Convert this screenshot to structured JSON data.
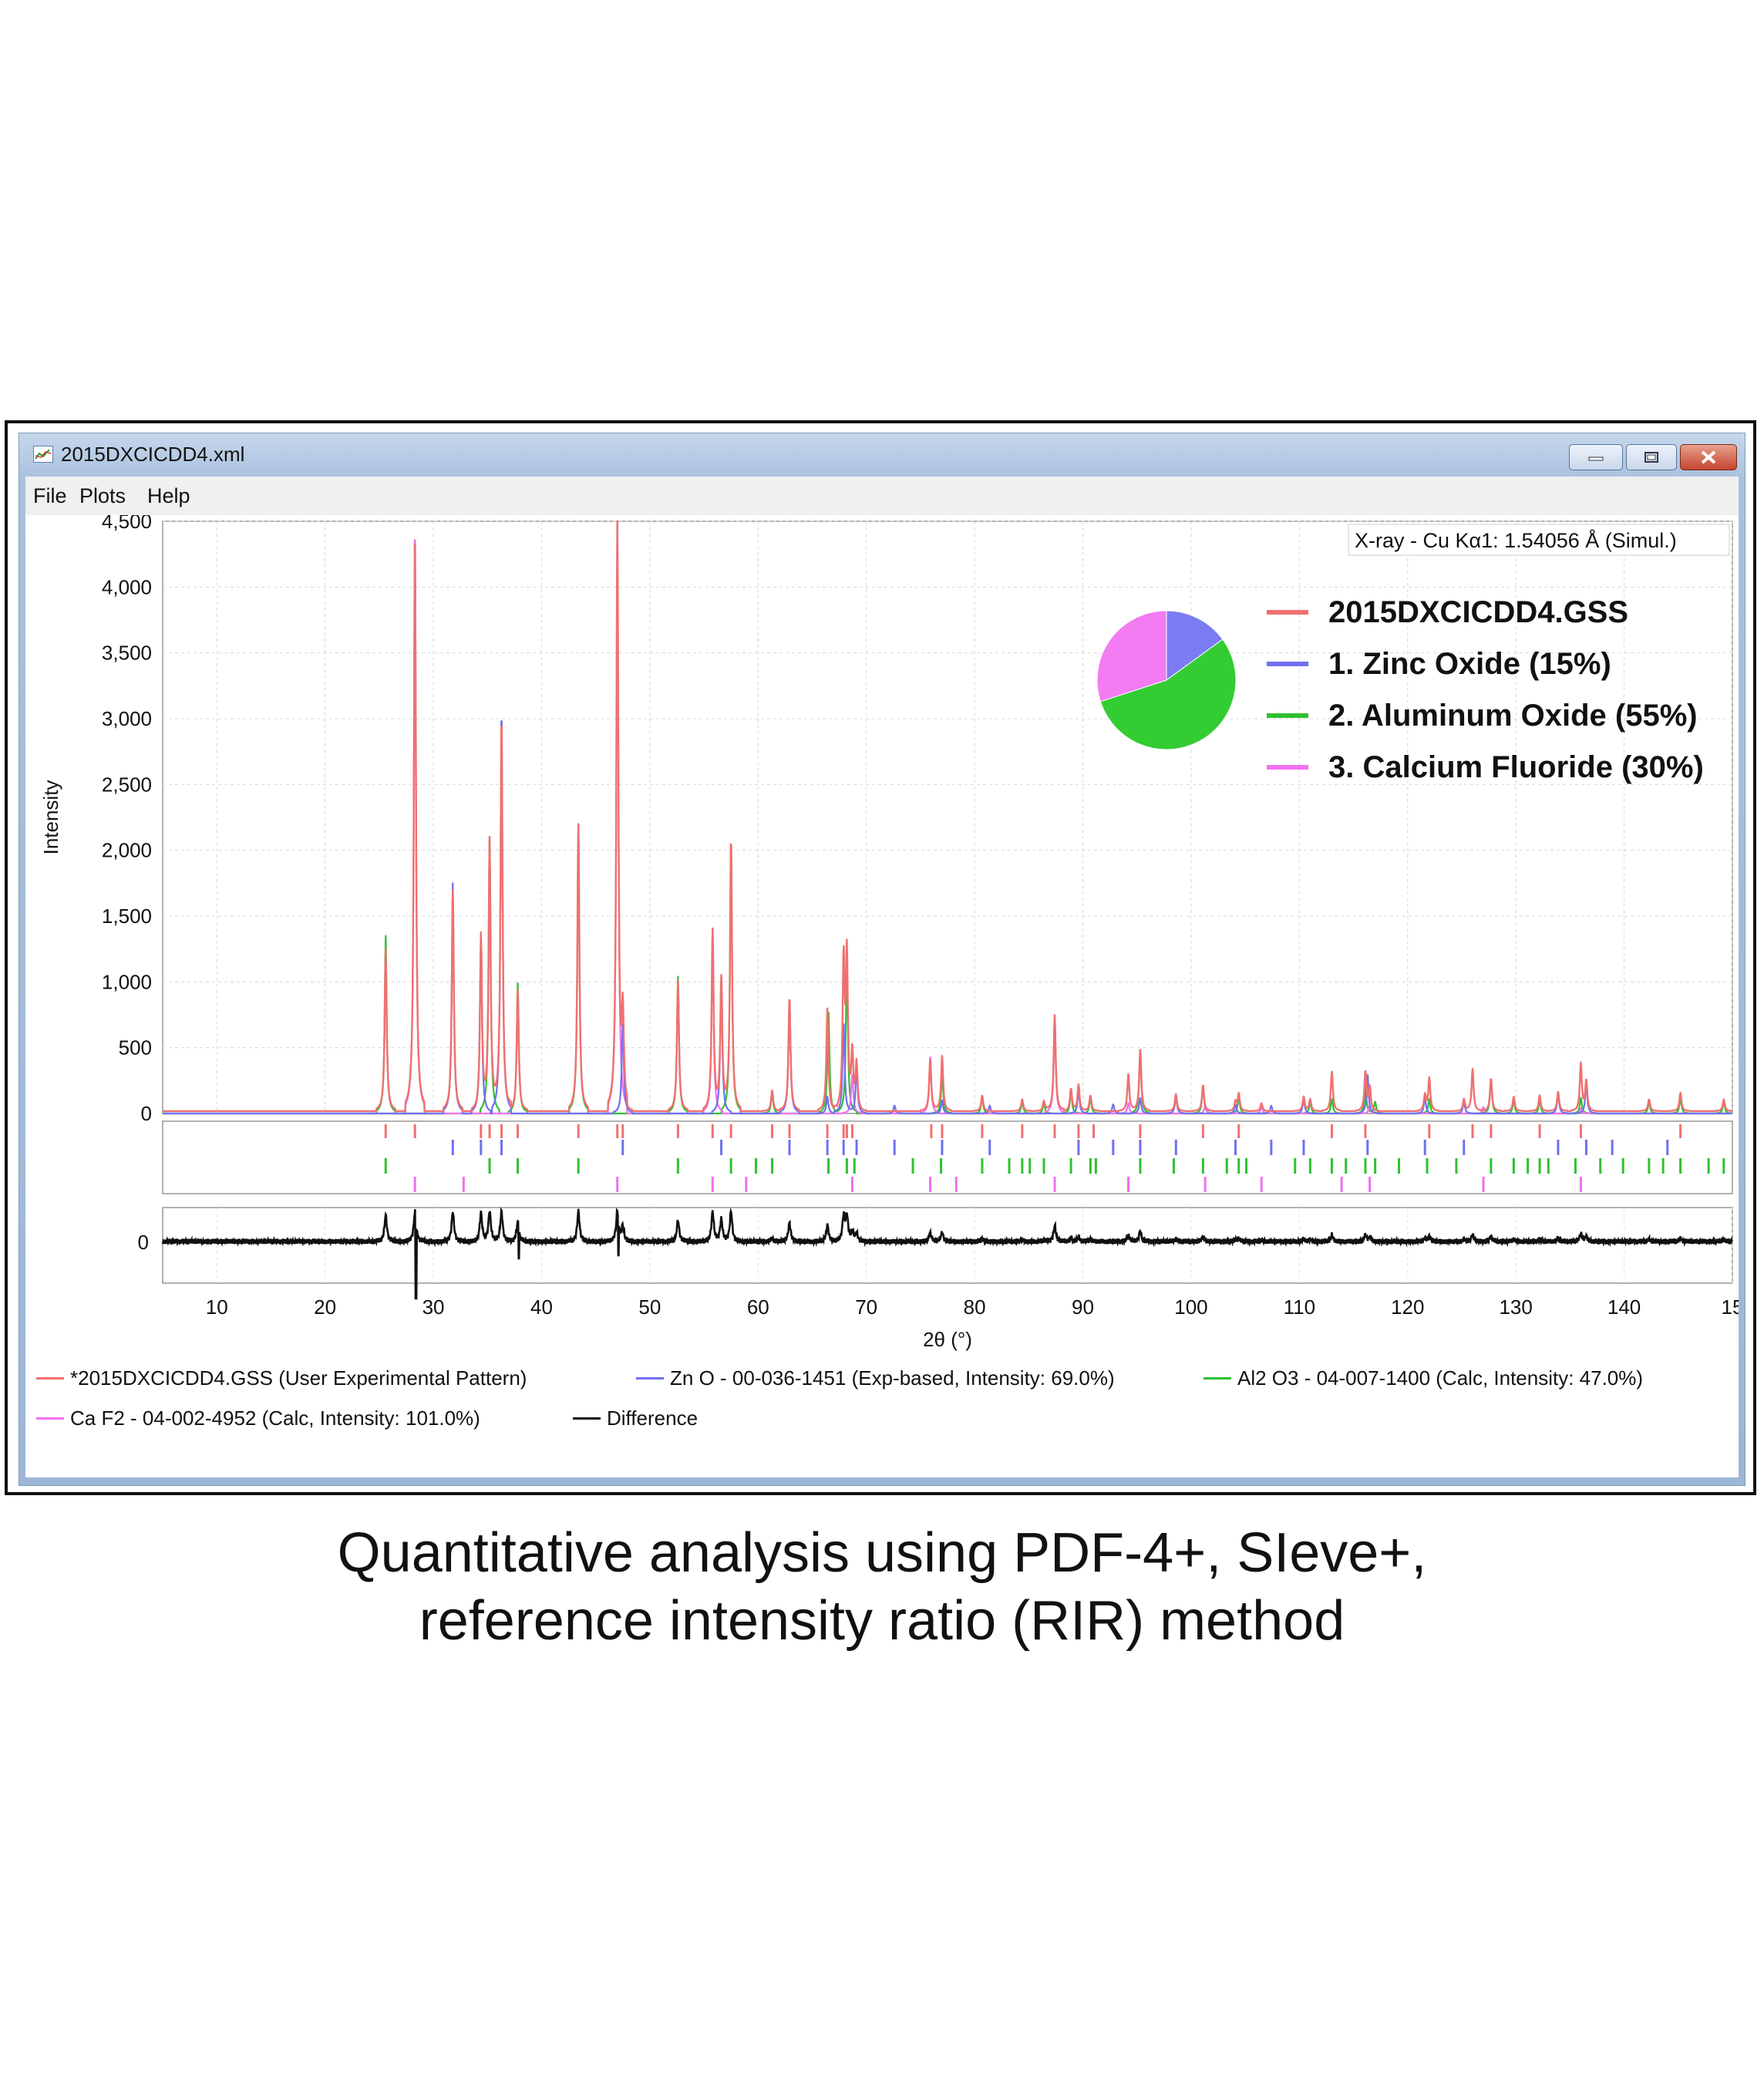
{
  "window": {
    "title": "2015DXCICDD4.xml",
    "menu": [
      "File",
      "Plots",
      "Help"
    ],
    "buttons": {
      "minimize": "—",
      "maximize": "□",
      "close": "✕"
    }
  },
  "chart_data": {
    "type": "line",
    "xlabel": "2θ (°)",
    "ylabel": "Intensity",
    "xlim": [
      5,
      150
    ],
    "ylim": [
      0,
      4500
    ],
    "x_ticks": [
      "10",
      "20",
      "30",
      "40",
      "50",
      "60",
      "70",
      "80",
      "90",
      "100",
      "110",
      "120",
      "130",
      "140",
      "15"
    ],
    "y_ticks": [
      "0",
      "500",
      "1,000",
      "1,500",
      "2,000",
      "2,500",
      "3,000",
      "3,500",
      "4,000",
      "4,500"
    ],
    "difference_tick": "0",
    "grid": true,
    "annotation": "X-ray - Cu Kα1: 1.54056 Å (Simul.)",
    "colors": {
      "experimental": "#f07070",
      "zno": "#7070f0",
      "al2o3": "#30c030",
      "caf2": "#f070f0",
      "difference": "#111111"
    },
    "inset_legend": [
      "2015DXCICDD4.GSS",
      "1. Zinc Oxide (15%)",
      "2. Aluminum Oxide (55%)",
      "3. Calcium Fluoride (30%)"
    ],
    "pie": [
      {
        "name": "Zinc Oxide",
        "percent": 15,
        "color": "#7b7bf2"
      },
      {
        "name": "Aluminum Oxide",
        "percent": 55,
        "color": "#33cc33"
      },
      {
        "name": "Calcium Fluoride",
        "percent": 30,
        "color": "#f27bf2"
      }
    ],
    "series": [
      {
        "key": "al2o3",
        "peaks": [
          [
            25.6,
            1350
          ],
          [
            35.2,
            2100
          ],
          [
            37.8,
            990
          ],
          [
            43.4,
            2200
          ],
          [
            52.6,
            1040
          ],
          [
            57.5,
            2080
          ],
          [
            61.3,
            160
          ],
          [
            66.5,
            790
          ],
          [
            68.2,
            1160
          ],
          [
            77.0,
            300
          ],
          [
            80.7,
            120
          ],
          [
            84.4,
            90
          ],
          [
            86.4,
            80
          ],
          [
            88.9,
            170
          ],
          [
            90.7,
            120
          ],
          [
            95.3,
            470
          ],
          [
            101.1,
            210
          ],
          [
            104.4,
            130
          ],
          [
            111.0,
            90
          ],
          [
            113.0,
            110
          ],
          [
            116.1,
            210
          ],
          [
            117.0,
            90
          ],
          [
            122.0,
            110
          ],
          [
            127.7,
            260
          ],
          [
            129.8,
            100
          ],
          [
            132.2,
            100
          ],
          [
            136.0,
            120
          ],
          [
            142.3,
            90
          ],
          [
            145.2,
            120
          ],
          [
            149.2,
            90
          ]
        ]
      },
      {
        "key": "caf2",
        "peaks": [
          [
            28.3,
            4500
          ],
          [
            47.0,
            4500
          ],
          [
            55.8,
            1390
          ],
          [
            68.7,
            300
          ],
          [
            75.9,
            440
          ],
          [
            87.4,
            700
          ],
          [
            94.2,
            80
          ],
          [
            101.3,
            60
          ],
          [
            106.5,
            50
          ],
          [
            116.5,
            60
          ],
          [
            127.0,
            50
          ],
          [
            136.0,
            40
          ]
        ]
      },
      {
        "key": "zno",
        "peaks": [
          [
            31.8,
            1750
          ],
          [
            34.4,
            1360
          ],
          [
            36.3,
            3080
          ],
          [
            47.5,
            700
          ],
          [
            56.6,
            1030
          ],
          [
            62.9,
            890
          ],
          [
            66.4,
            130
          ],
          [
            67.9,
            700
          ],
          [
            69.1,
            350
          ],
          [
            72.6,
            60
          ],
          [
            77.0,
            100
          ],
          [
            81.4,
            60
          ],
          [
            89.6,
            180
          ],
          [
            92.8,
            70
          ],
          [
            95.3,
            120
          ],
          [
            98.6,
            130
          ],
          [
            104.1,
            70
          ],
          [
            107.4,
            60
          ],
          [
            110.4,
            110
          ],
          [
            116.3,
            300
          ],
          [
            121.6,
            120
          ],
          [
            125.2,
            90
          ],
          [
            133.9,
            150
          ],
          [
            136.5,
            230
          ]
        ]
      },
      {
        "key": "experimental",
        "peaks": [
          [
            25.6,
            1230
          ],
          [
            28.3,
            4450
          ],
          [
            31.8,
            1680
          ],
          [
            34.4,
            1320
          ],
          [
            35.2,
            2060
          ],
          [
            36.3,
            3020
          ],
          [
            37.8,
            920
          ],
          [
            43.4,
            2180
          ],
          [
            47.0,
            4500
          ],
          [
            47.5,
            700
          ],
          [
            52.6,
            990
          ],
          [
            55.8,
            1370
          ],
          [
            56.6,
            1010
          ],
          [
            57.5,
            2080
          ],
          [
            61.3,
            160
          ],
          [
            62.9,
            870
          ],
          [
            66.4,
            780
          ],
          [
            67.9,
            1130
          ],
          [
            68.2,
            1150
          ],
          [
            68.7,
            420
          ],
          [
            69.1,
            360
          ],
          [
            75.9,
            400
          ],
          [
            77.0,
            420
          ],
          [
            80.7,
            120
          ],
          [
            84.4,
            90
          ],
          [
            86.4,
            80
          ],
          [
            87.4,
            730
          ],
          [
            88.9,
            170
          ],
          [
            89.6,
            200
          ],
          [
            90.7,
            120
          ],
          [
            94.2,
            280
          ],
          [
            95.3,
            480
          ],
          [
            98.6,
            130
          ],
          [
            101.1,
            200
          ],
          [
            104.1,
            70
          ],
          [
            104.4,
            130
          ],
          [
            106.5,
            60
          ],
          [
            110.4,
            110
          ],
          [
            111.0,
            90
          ],
          [
            113.0,
            300
          ],
          [
            116.1,
            300
          ],
          [
            116.5,
            180
          ],
          [
            121.6,
            120
          ],
          [
            122.0,
            250
          ],
          [
            125.2,
            90
          ],
          [
            126.0,
            320
          ],
          [
            127.7,
            250
          ],
          [
            129.8,
            110
          ],
          [
            132.2,
            120
          ],
          [
            133.9,
            150
          ],
          [
            136.0,
            360
          ],
          [
            136.5,
            230
          ],
          [
            142.3,
            90
          ],
          [
            145.2,
            140
          ],
          [
            149.2,
            90
          ]
        ]
      }
    ],
    "ticks_rows": {
      "experimental": [
        25.6,
        28.3,
        34.4,
        35.2,
        36.3,
        37.8,
        43.4,
        47.0,
        47.5,
        52.6,
        55.8,
        57.5,
        61.3,
        62.9,
        66.4,
        67.9,
        68.2,
        68.7,
        76.0,
        77.0,
        80.7,
        84.4,
        87.4,
        89.6,
        91.0,
        95.3,
        101.1,
        104.4,
        113.0,
        116.1,
        122.0,
        126.0,
        127.7,
        132.2,
        136.0,
        145.2
      ],
      "zno": [
        31.8,
        34.4,
        36.3,
        47.5,
        56.6,
        62.9,
        66.4,
        67.9,
        69.1,
        72.6,
        77.0,
        81.4,
        89.6,
        92.8,
        95.3,
        98.6,
        104.1,
        107.4,
        110.4,
        116.3,
        121.6,
        125.2,
        133.9,
        136.5,
        138.9,
        144.0
      ],
      "al2o3": [
        25.6,
        35.2,
        37.8,
        43.4,
        52.6,
        57.5,
        59.8,
        61.3,
        66.5,
        68.2,
        68.9,
        74.3,
        76.9,
        80.7,
        83.2,
        84.4,
        85.1,
        86.4,
        88.9,
        90.7,
        91.2,
        95.3,
        98.4,
        101.1,
        103.3,
        104.4,
        105.1,
        109.6,
        111.0,
        113.0,
        114.3,
        116.1,
        117.0,
        119.2,
        121.8,
        124.5,
        127.7,
        129.8,
        131.1,
        132.2,
        133.0,
        135.5,
        137.8,
        139.9,
        142.3,
        143.6,
        145.2,
        147.8,
        149.2
      ],
      "caf2": [
        28.3,
        32.8,
        47.0,
        55.8,
        58.9,
        68.7,
        75.9,
        78.3,
        87.4,
        94.2,
        101.3,
        106.5,
        113.9,
        116.5,
        127.0,
        136.0
      ]
    }
  },
  "legend": [
    {
      "key": "experimental",
      "label": "*2015DXCICDD4.GSS (User Experimental Pattern)"
    },
    {
      "key": "zno",
      "label": "Zn O - 00-036-1451 (Exp-based, Intensity: 69.0%)"
    },
    {
      "key": "al2o3",
      "label": "Al2 O3 - 04-007-1400 (Calc, Intensity: 47.0%)"
    },
    {
      "key": "caf2",
      "label": "Ca F2 - 04-002-4952 (Calc, Intensity: 101.0%)"
    },
    {
      "key": "difference",
      "label": "Difference"
    }
  ],
  "caption": {
    "line1": "Quantitative analysis using PDF-4+, SIeve+,",
    "line2": "reference intensity ratio (RIR) method"
  }
}
